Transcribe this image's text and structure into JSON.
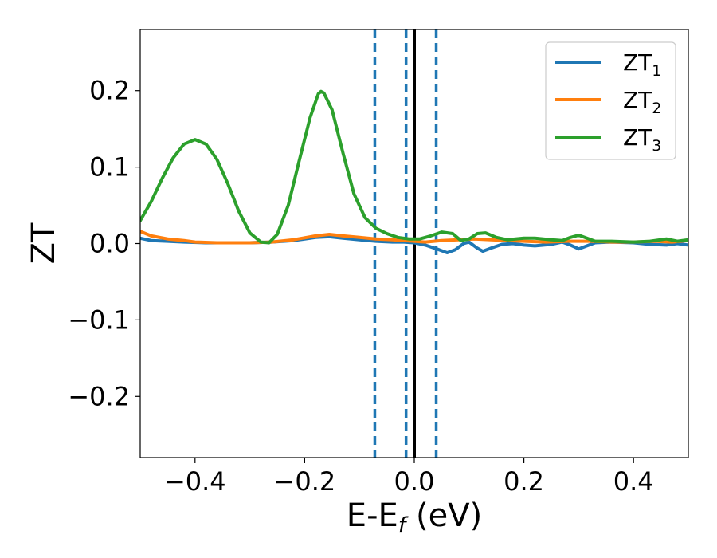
{
  "chart_data": {
    "type": "line",
    "xlabel_main": "E-E",
    "xlabel_sub": "f",
    "xlabel_unit": " (eV)",
    "ylabel": "ZT",
    "xlim": [
      -0.5,
      0.5
    ],
    "ylim": [
      -0.28,
      0.28
    ],
    "grid": false,
    "legend_position": "top-right",
    "x_ticks": [
      {
        "value": -0.4,
        "label": "−0.4"
      },
      {
        "value": -0.2,
        "label": "−0.2"
      },
      {
        "value": 0.0,
        "label": "0.0"
      },
      {
        "value": 0.2,
        "label": "0.2"
      },
      {
        "value": 0.4,
        "label": "0.4"
      }
    ],
    "y_ticks": [
      {
        "value": 0.2,
        "label": "0.2"
      },
      {
        "value": 0.1,
        "label": "0.1"
      },
      {
        "value": 0.0,
        "label": "0.0"
      },
      {
        "value": -0.1,
        "label": "−0.1"
      },
      {
        "value": -0.2,
        "label": "−0.2"
      }
    ],
    "vertical_lines": [
      {
        "x": -0.072,
        "style": "dashed",
        "color": "#1f77b4"
      },
      {
        "x": -0.015,
        "style": "dashed",
        "color": "#1f77b4"
      },
      {
        "x": 0.0,
        "style": "solid",
        "color": "#000000"
      },
      {
        "x": 0.04,
        "style": "dashed",
        "color": "#1f77b4"
      }
    ],
    "series": [
      {
        "name_main": "ZT",
        "name_sub": "1",
        "color": "#1f77b4",
        "points": [
          [
            -0.5,
            0.007
          ],
          [
            -0.48,
            0.004
          ],
          [
            -0.45,
            0.003
          ],
          [
            -0.42,
            0.002
          ],
          [
            -0.38,
            0.001
          ],
          [
            -0.34,
            0.001
          ],
          [
            -0.3,
            0.001
          ],
          [
            -0.26,
            0.002
          ],
          [
            -0.22,
            0.004
          ],
          [
            -0.18,
            0.008
          ],
          [
            -0.155,
            0.009
          ],
          [
            -0.13,
            0.007
          ],
          [
            -0.1,
            0.005
          ],
          [
            -0.07,
            0.003
          ],
          [
            -0.04,
            0.002
          ],
          [
            -0.02,
            0.002
          ],
          [
            0.0,
            0.001
          ],
          [
            0.02,
            -0.002
          ],
          [
            0.045,
            -0.008
          ],
          [
            0.06,
            -0.012
          ],
          [
            0.075,
            -0.008
          ],
          [
            0.09,
            0.0
          ],
          [
            0.1,
            0.002
          ],
          [
            0.115,
            -0.006
          ],
          [
            0.125,
            -0.01
          ],
          [
            0.14,
            -0.006
          ],
          [
            0.16,
            -0.001
          ],
          [
            0.18,
            0.0
          ],
          [
            0.2,
            -0.002
          ],
          [
            0.22,
            -0.003
          ],
          [
            0.25,
            -0.001
          ],
          [
            0.27,
            0.002
          ],
          [
            0.285,
            -0.002
          ],
          [
            0.3,
            -0.007
          ],
          [
            0.315,
            -0.003
          ],
          [
            0.33,
            0.001
          ],
          [
            0.36,
            0.002
          ],
          [
            0.4,
            0.001
          ],
          [
            0.43,
            -0.001
          ],
          [
            0.46,
            -0.002
          ],
          [
            0.48,
            0.0
          ],
          [
            0.5,
            -0.002
          ]
        ]
      },
      {
        "name_main": "ZT",
        "name_sub": "2",
        "color": "#ff7f0e",
        "points": [
          [
            -0.5,
            0.016
          ],
          [
            -0.48,
            0.01
          ],
          [
            -0.45,
            0.006
          ],
          [
            -0.42,
            0.004
          ],
          [
            -0.4,
            0.002
          ],
          [
            -0.36,
            0.001
          ],
          [
            -0.3,
            0.001
          ],
          [
            -0.26,
            0.002
          ],
          [
            -0.22,
            0.005
          ],
          [
            -0.18,
            0.01
          ],
          [
            -0.155,
            0.012
          ],
          [
            -0.13,
            0.01
          ],
          [
            -0.1,
            0.008
          ],
          [
            -0.07,
            0.006
          ],
          [
            -0.04,
            0.005
          ],
          [
            -0.02,
            0.004
          ],
          [
            0.0,
            0.003
          ],
          [
            0.02,
            0.002
          ],
          [
            0.05,
            0.004
          ],
          [
            0.08,
            0.005
          ],
          [
            0.11,
            0.006
          ],
          [
            0.14,
            0.005
          ],
          [
            0.17,
            0.004
          ],
          [
            0.2,
            0.003
          ],
          [
            0.24,
            0.002
          ],
          [
            0.28,
            0.003
          ],
          [
            0.32,
            0.003
          ],
          [
            0.36,
            0.002
          ],
          [
            0.4,
            0.002
          ],
          [
            0.44,
            0.003
          ],
          [
            0.47,
            0.002
          ],
          [
            0.5,
            0.004
          ]
        ]
      },
      {
        "name_main": "ZT",
        "name_sub": "3",
        "color": "#2ca02c",
        "points": [
          [
            -0.5,
            0.03
          ],
          [
            -0.48,
            0.055
          ],
          [
            -0.46,
            0.085
          ],
          [
            -0.44,
            0.112
          ],
          [
            -0.42,
            0.13
          ],
          [
            -0.4,
            0.136
          ],
          [
            -0.38,
            0.13
          ],
          [
            -0.36,
            0.11
          ],
          [
            -0.34,
            0.078
          ],
          [
            -0.32,
            0.042
          ],
          [
            -0.3,
            0.014
          ],
          [
            -0.28,
            0.002
          ],
          [
            -0.265,
            0.001
          ],
          [
            -0.25,
            0.012
          ],
          [
            -0.23,
            0.05
          ],
          [
            -0.21,
            0.108
          ],
          [
            -0.19,
            0.165
          ],
          [
            -0.175,
            0.196
          ],
          [
            -0.17,
            0.199
          ],
          [
            -0.165,
            0.197
          ],
          [
            -0.15,
            0.175
          ],
          [
            -0.13,
            0.118
          ],
          [
            -0.11,
            0.065
          ],
          [
            -0.09,
            0.034
          ],
          [
            -0.07,
            0.02
          ],
          [
            -0.05,
            0.013
          ],
          [
            -0.03,
            0.008
          ],
          [
            -0.01,
            0.006
          ],
          [
            0.01,
            0.006
          ],
          [
            0.03,
            0.01
          ],
          [
            0.05,
            0.015
          ],
          [
            0.07,
            0.013
          ],
          [
            0.085,
            0.004
          ],
          [
            0.1,
            0.006
          ],
          [
            0.115,
            0.013
          ],
          [
            0.13,
            0.014
          ],
          [
            0.15,
            0.008
          ],
          [
            0.17,
            0.005
          ],
          [
            0.2,
            0.007
          ],
          [
            0.22,
            0.007
          ],
          [
            0.25,
            0.005
          ],
          [
            0.27,
            0.004
          ],
          [
            0.285,
            0.008
          ],
          [
            0.3,
            0.011
          ],
          [
            0.315,
            0.007
          ],
          [
            0.33,
            0.003
          ],
          [
            0.36,
            0.003
          ],
          [
            0.4,
            0.002
          ],
          [
            0.43,
            0.003
          ],
          [
            0.46,
            0.006
          ],
          [
            0.48,
            0.003
          ],
          [
            0.5,
            0.005
          ]
        ]
      }
    ]
  }
}
